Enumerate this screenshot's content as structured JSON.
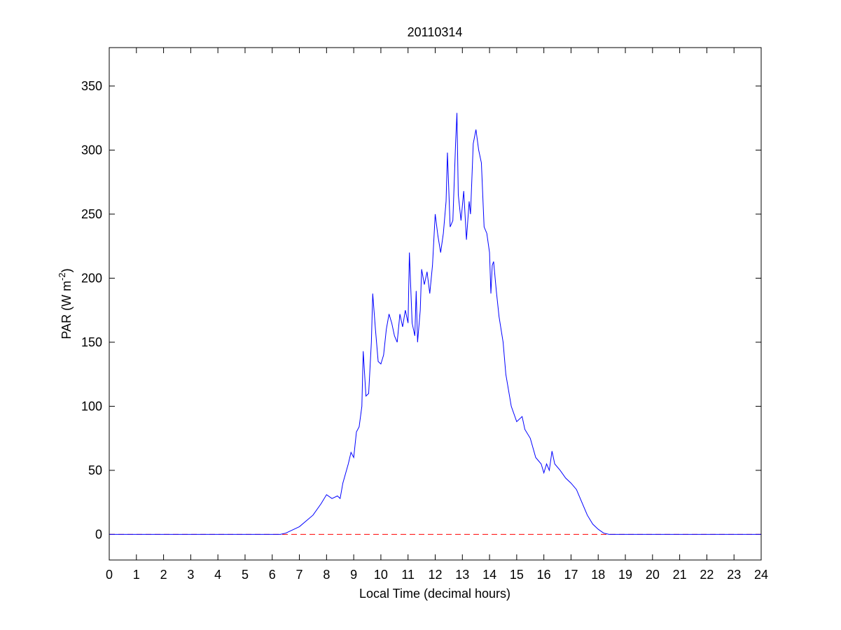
{
  "chart_data": {
    "type": "line",
    "title": "20110314",
    "x_label": "Local Time (decimal hours)",
    "y_label": [
      "PAR (W m",
      "-2",
      ")"
    ],
    "xlim": [
      0,
      24
    ],
    "ylim": [
      -20,
      380
    ],
    "xticks": [
      0,
      1,
      2,
      3,
      4,
      5,
      6,
      7,
      8,
      9,
      10,
      11,
      12,
      13,
      14,
      15,
      16,
      17,
      18,
      19,
      20,
      21,
      22,
      23,
      24
    ],
    "yticks": [
      0,
      50,
      100,
      150,
      200,
      250,
      300,
      350
    ],
    "grid": false,
    "reference_line": {
      "value": 0,
      "color": "#ff0000"
    },
    "series": [
      {
        "color": "#0000ff",
        "x": [
          0,
          6.3,
          6.5,
          7,
          7.5,
          7.8,
          8,
          8.2,
          8.4,
          8.5,
          8.6,
          8.8,
          8.9,
          9.0,
          9.1,
          9.2,
          9.3,
          9.35,
          9.45,
          9.55,
          9.65,
          9.7,
          9.8,
          9.9,
          10.0,
          10.1,
          10.2,
          10.3,
          10.4,
          10.5,
          10.6,
          10.7,
          10.8,
          10.9,
          11.0,
          11.05,
          11.15,
          11.25,
          11.3,
          11.35,
          11.45,
          11.5,
          11.6,
          11.7,
          11.8,
          11.9,
          12.0,
          12.1,
          12.2,
          12.3,
          12.4,
          12.45,
          12.55,
          12.65,
          12.75,
          12.8,
          12.85,
          12.95,
          13.05,
          13.15,
          13.25,
          13.3,
          13.4,
          13.5,
          13.6,
          13.7,
          13.8,
          13.9,
          14.0,
          14.05,
          14.1,
          14.15,
          14.25,
          14.35,
          14.5,
          14.6,
          14.8,
          15.0,
          15.2,
          15.3,
          15.5,
          15.7,
          15.9,
          16.0,
          16.1,
          16.2,
          16.3,
          16.4,
          16.6,
          16.8,
          17.0,
          17.2,
          17.4,
          17.6,
          17.8,
          18.0,
          18.2,
          18.4,
          24
        ],
        "values": [
          0,
          0,
          1,
          6,
          15,
          24,
          31,
          28,
          30,
          28,
          40,
          55,
          64,
          60,
          80,
          84,
          100,
          143,
          108,
          110,
          150,
          188,
          160,
          135,
          133,
          140,
          160,
          172,
          165,
          155,
          150,
          172,
          162,
          175,
          165,
          220,
          165,
          155,
          190,
          150,
          175,
          207,
          195,
          205,
          188,
          210,
          250,
          233,
          220,
          235,
          260,
          298,
          240,
          245,
          305,
          329,
          265,
          245,
          268,
          230,
          260,
          250,
          305,
          316,
          300,
          290,
          240,
          235,
          220,
          188,
          210,
          213,
          190,
          170,
          150,
          125,
          100,
          88,
          92,
          82,
          75,
          60,
          55,
          48,
          55,
          50,
          65,
          55,
          50,
          44,
          40,
          35,
          25,
          15,
          8,
          4,
          1,
          0,
          0
        ]
      }
    ]
  }
}
